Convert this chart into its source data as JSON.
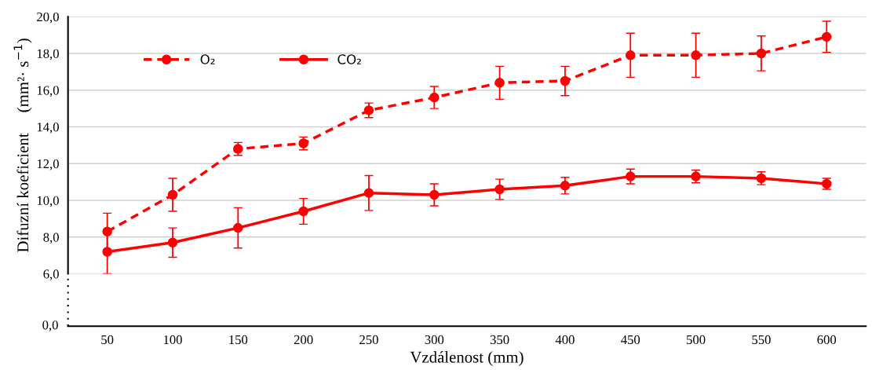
{
  "chart_data": {
    "type": "line",
    "xlabel": "Vzdálenost (mm)",
    "ylabel": "Difuzní koeficient     (mm²· s$^{−1}$)",
    "categories": [
      "50",
      "100",
      "150",
      "200",
      "250",
      "300",
      "350",
      "400",
      "450",
      "500",
      "550",
      "600"
    ],
    "series": [
      {
        "name": "O₂",
        "color": "#ff0000",
        "line_style": "dashed",
        "values": [
          8.3,
          10.3,
          12.8,
          13.1,
          14.9,
          15.6,
          16.4,
          16.5,
          17.9,
          17.9,
          18.0,
          18.9
        ],
        "errors": [
          1.0,
          0.9,
          0.35,
          0.35,
          0.4,
          0.6,
          0.9,
          0.8,
          1.2,
          1.2,
          0.95,
          0.85
        ]
      },
      {
        "name": "CO₂",
        "color": "#ff0000",
        "line_style": "solid",
        "values": [
          7.2,
          7.7,
          8.5,
          9.4,
          10.4,
          10.3,
          10.6,
          10.8,
          11.3,
          11.3,
          11.2,
          10.9
        ],
        "errors": [
          1.2,
          0.8,
          1.1,
          0.7,
          0.95,
          0.6,
          0.55,
          0.45,
          0.4,
          0.35,
          0.35,
          0.3
        ]
      }
    ],
    "ylim": [
      6,
      20
    ],
    "annotations": [
      "0,0"
    ],
    "yticks": [
      {
        "value": 6,
        "label": "6,0"
      },
      {
        "value": 8,
        "label": "8,0"
      },
      {
        "value": 10,
        "label": "10,0"
      },
      {
        "value": 12,
        "label": "12,0"
      },
      {
        "value": 14,
        "label": "14,0"
      },
      {
        "value": 16,
        "label": "16,0"
      },
      {
        "value": 18,
        "label": "18,0"
      },
      {
        "value": 20,
        "label": "20,0"
      }
    ],
    "grid": "y",
    "legend": "top left",
    "marker": "circle"
  }
}
